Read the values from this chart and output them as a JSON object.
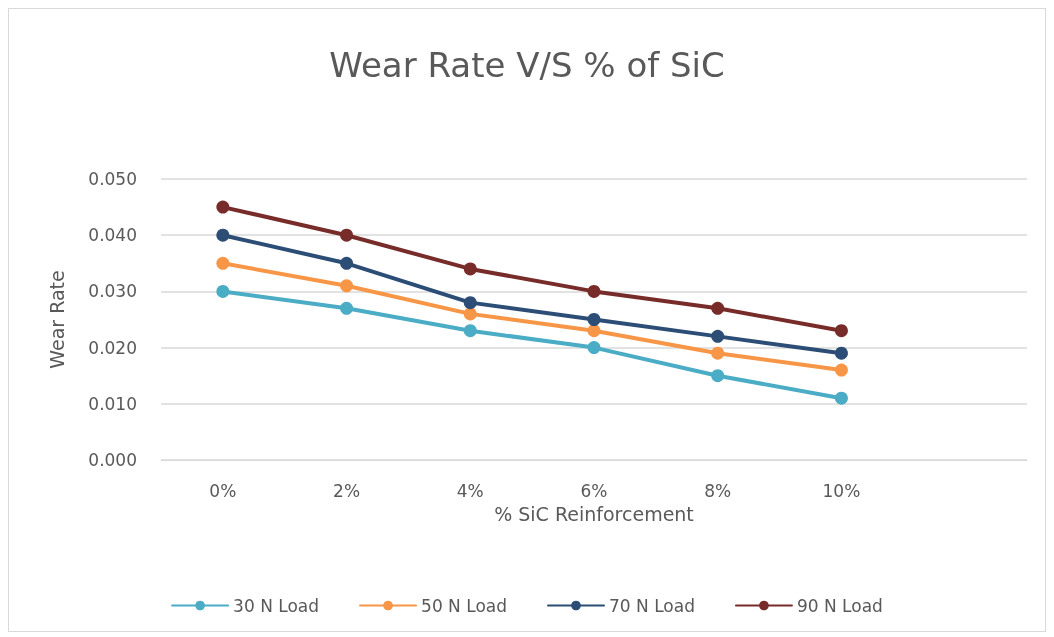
{
  "chart_data": {
    "type": "line",
    "title": "Wear Rate V/S % of SiC",
    "xlabel": "% SiC Reinforcement",
    "ylabel": "Wear Rate",
    "categories": [
      "0%",
      "2%",
      "4%",
      "6%",
      "8%",
      "10%",
      null
    ],
    "series": [
      {
        "name": "30 N Load",
        "color": "#4bacc6",
        "values": [
          0.03,
          0.027,
          0.023,
          0.02,
          0.015,
          0.011,
          null
        ]
      },
      {
        "name": "50 N Load",
        "color": "#f79646",
        "values": [
          0.035,
          0.031,
          0.026,
          0.023,
          0.019,
          0.016,
          null
        ]
      },
      {
        "name": "70 N Load",
        "color": "#2c4d75",
        "values": [
          0.04,
          0.035,
          0.028,
          0.025,
          0.022,
          0.019,
          null
        ]
      },
      {
        "name": "90 N Load",
        "color": "#772c2a",
        "values": [
          0.045,
          0.04,
          0.034,
          0.03,
          0.027,
          0.023,
          null
        ]
      }
    ],
    "ylim": [
      0,
      0.05
    ],
    "yticks": [
      {
        "value": 0,
        "label": "0.000"
      },
      {
        "value": 0.01,
        "label": "0.010"
      },
      {
        "value": 0.02,
        "label": "0.020"
      },
      {
        "value": 0.03,
        "label": "0.030"
      },
      {
        "value": 0.04,
        "label": "0.040"
      },
      {
        "value": 0.05,
        "label": "0.050"
      }
    ],
    "grid": "y",
    "legend": "bottom",
    "marker": "circle",
    "line_style": "solid"
  }
}
